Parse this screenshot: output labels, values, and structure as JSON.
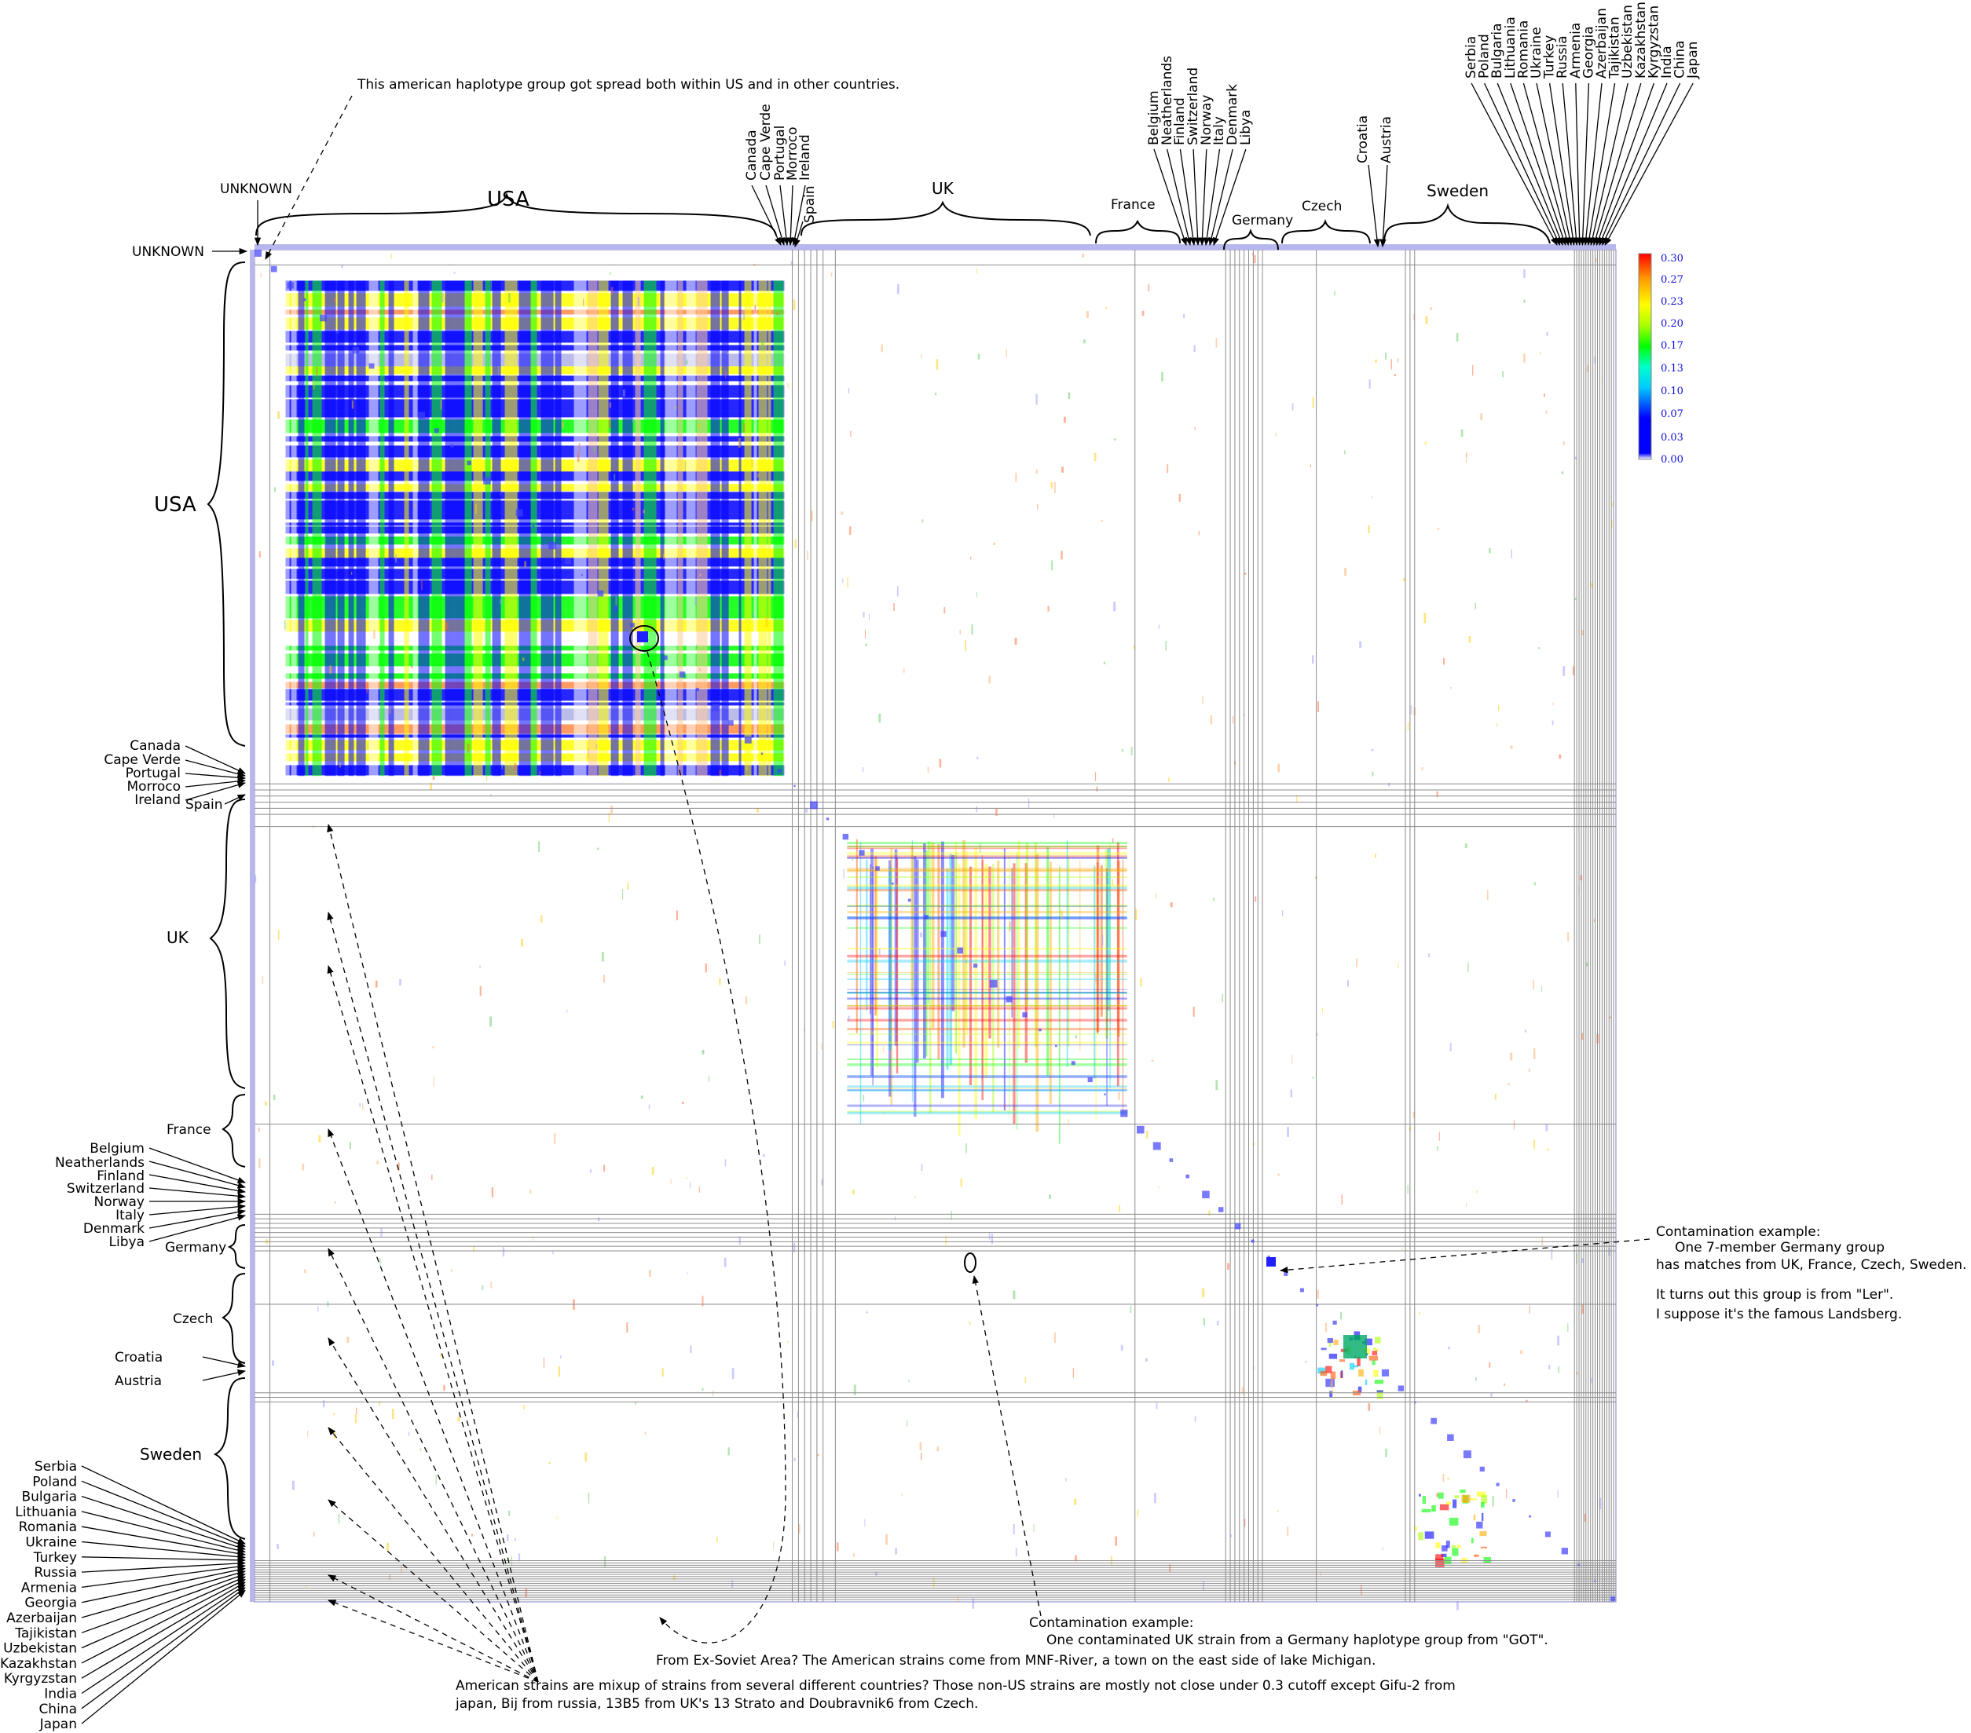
{
  "chart_data": {
    "type": "heatmap",
    "title": "",
    "colorbar": {
      "ticks": [
        "0.30",
        "0.27",
        "0.23",
        "0.20",
        "0.17",
        "0.13",
        "0.10",
        "0.07",
        "0.03",
        "0.00"
      ],
      "min": 0.0,
      "max": 0.3,
      "colors": [
        "#0000ff",
        "#00aaff",
        "#00ffcc",
        "#00ff00",
        "#aaff00",
        "#ffff00",
        "#ffaa00",
        "#ff5500",
        "#ff0000"
      ]
    },
    "groups": [
      {
        "name": "UNKNOWN",
        "size": 1
      },
      {
        "name": "USA",
        "size": 34
      },
      {
        "name": "Canada",
        "size": 0.4
      },
      {
        "name": "Cape Verde",
        "size": 0.4
      },
      {
        "name": "Portugal",
        "size": 0.4
      },
      {
        "name": "Morroco",
        "size": 0.4
      },
      {
        "name": "Ireland",
        "size": 0.4
      },
      {
        "name": "Spain",
        "size": 0.8
      },
      {
        "name": "UK",
        "size": 19.5
      },
      {
        "name": "France",
        "size": 5.9
      },
      {
        "name": "Belgium",
        "size": 0.3
      },
      {
        "name": "Neatherlands",
        "size": 0.3
      },
      {
        "name": "Finland",
        "size": 0.3
      },
      {
        "name": "Switzerland",
        "size": 0.3
      },
      {
        "name": "Norway",
        "size": 0.3
      },
      {
        "name": "Italy",
        "size": 0.3
      },
      {
        "name": "Denmark",
        "size": 0.3
      },
      {
        "name": "Libya",
        "size": 0.3
      },
      {
        "name": "Germany",
        "size": 3.5
      },
      {
        "name": "Czech",
        "size": 5.8
      },
      {
        "name": "Croatia",
        "size": 0.3
      },
      {
        "name": "Austria",
        "size": 0.3
      },
      {
        "name": "Sweden",
        "size": 10.4
      },
      {
        "name": "Serbia",
        "size": 0.15
      },
      {
        "name": "Poland",
        "size": 0.15
      },
      {
        "name": "Bulgaria",
        "size": 0.15
      },
      {
        "name": "Lithuania",
        "size": 0.15
      },
      {
        "name": "Romania",
        "size": 0.15
      },
      {
        "name": "Ukraine",
        "size": 0.15
      },
      {
        "name": "Turkey",
        "size": 0.15
      },
      {
        "name": "Russia",
        "size": 0.15
      },
      {
        "name": "Armenia",
        "size": 0.15
      },
      {
        "name": "Georgia",
        "size": 0.15
      },
      {
        "name": "Azerbaijan",
        "size": 0.15
      },
      {
        "name": "Tajikistan",
        "size": 0.15
      },
      {
        "name": "Uzbekistan",
        "size": 0.15
      },
      {
        "name": "Kazakhstan",
        "size": 0.15
      },
      {
        "name": "Kyrgyzstan",
        "size": 0.15
      },
      {
        "name": "India",
        "size": 0.15
      },
      {
        "name": "China",
        "size": 0.15
      },
      {
        "name": "Japan",
        "size": 0.15
      }
    ]
  },
  "labels": {
    "unknown_top": "UNKNOWN",
    "unknown_left": "UNKNOWN",
    "usa_top": "USA",
    "usa_left": "USA",
    "uk_top": "UK",
    "uk_left": "UK",
    "france_top": "France",
    "france_left": "France",
    "germany_top": "Germany",
    "germany_left": "Germany",
    "czech_top": "Czech",
    "czech_left": "Czech",
    "sweden_top": "Sweden",
    "sweden_left": "Sweden",
    "spain_top": "Spain",
    "spain_left": "Spain",
    "croatia_top": "Croatia",
    "croatia_left": "Croatia",
    "austria_top": "Austria",
    "austria_left": "Austria",
    "top_small_west": [
      "Canada",
      "Cape Verde",
      "Portugal",
      "Morroco",
      "Ireland"
    ],
    "top_small_mid": [
      "Belgium",
      "Neatherlands",
      "Finland",
      "Switzerland",
      "Norway",
      "Italy",
      "Denmark",
      "Libya"
    ],
    "top_small_east": [
      "Serbia",
      "Poland",
      "Bulgaria",
      "Lithuania",
      "Romania",
      "Ukraine",
      "Turkey",
      "Russia",
      "Armenia",
      "Georgia",
      "Azerbaijan",
      "Tajikistan",
      "Uzbekistan",
      "Kazakhstan",
      "Kyrgyzstan",
      "India",
      "China",
      "Japan"
    ],
    "left_small_west": [
      "Canada",
      "Cape Verde",
      "Portugal",
      "Morroco",
      "Ireland"
    ],
    "left_small_mid": [
      "Belgium",
      "Neatherlands",
      "Finland",
      "Switzerland",
      "Norway",
      "Italy",
      "Denmark",
      "Libya"
    ],
    "left_small_east": [
      "Serbia",
      "Poland",
      "Bulgaria",
      "Lithuania",
      "Romania",
      "Ukraine",
      "Turkey",
      "Russia",
      "Armenia",
      "Georgia",
      "Azerbaijan",
      "Tajikistan",
      "Uzbekistan",
      "Kazakhstan",
      "Kyrgyzstan",
      "India",
      "China",
      "Japan"
    ]
  },
  "annotations": {
    "american_haplotype": "This american haplotype group got spread both within US and in other countries.",
    "contam_germany_1": "Contamination example:",
    "contam_germany_2": "One 7-member Germany group",
    "contam_germany_3": "has matches from UK, France, Czech, Sweden.",
    "contam_germany_4": "It turns out this group is from \"Ler\".",
    "contam_germany_5": "I suppose it's the famous Landsberg.",
    "contam_uk_1": "Contamination example:",
    "contam_uk_2": "One contaminated UK strain from a Germany haplotype group from \"GOT\".",
    "exsoviet": "From Ex-Soviet Area? The American strains come from MNF-River, a town on the east side of lake Michigan.",
    "american_mix_1": "American strains are mixup of strains from several different countries? Those non-US strains are mostly not close under 0.3 cutoff except Gifu-2 from",
    "american_mix_2": "japan, Bij from russia, 13B5 from UK's 13 Strato and Doubravnik6 from Czech."
  }
}
